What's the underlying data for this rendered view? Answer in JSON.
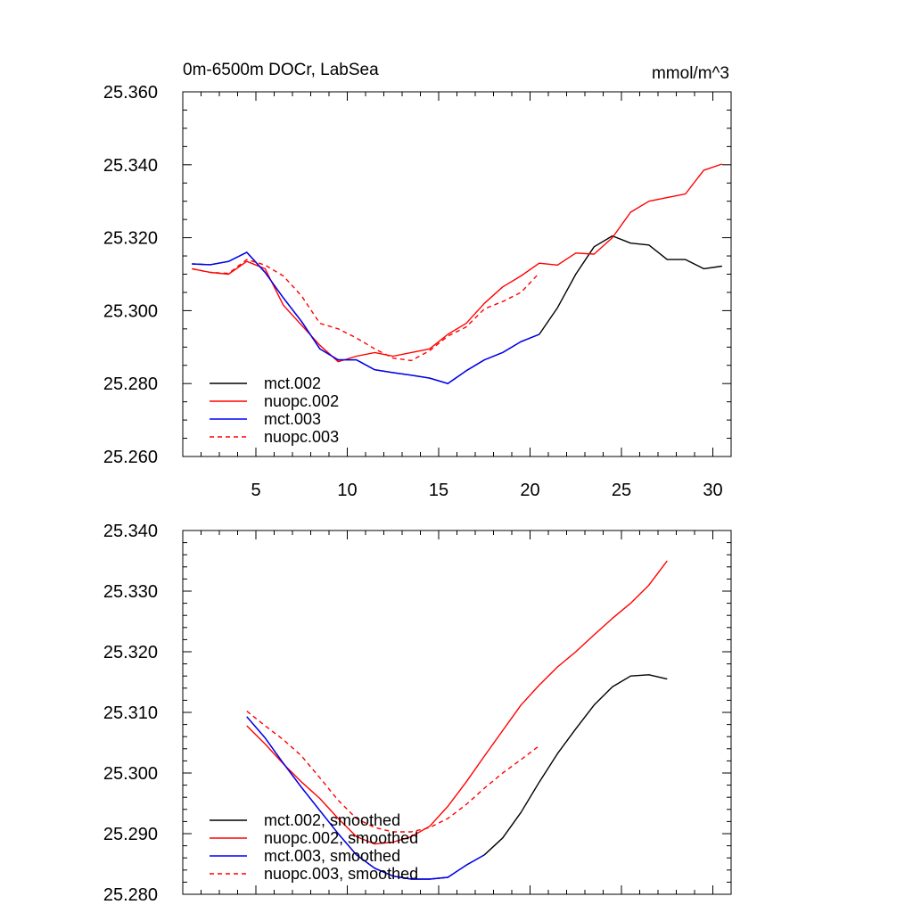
{
  "chart_data": [
    {
      "type": "line",
      "title": "0m-6500m DOCr, LabSea",
      "units": "mmol/m^3",
      "xlabel": "",
      "ylabel": "",
      "xlim": [
        1,
        31
      ],
      "ylim": [
        25.26,
        25.36
      ],
      "x_ticks": [
        5,
        10,
        15,
        20,
        25,
        30
      ],
      "x_tick_labels": [
        "5",
        "10",
        "15",
        "20",
        "25",
        "30"
      ],
      "y_ticks": [
        25.26,
        25.28,
        25.3,
        25.32,
        25.34,
        25.36
      ],
      "y_tick_labels": [
        "25.260",
        "25.280",
        "25.300",
        "25.320",
        "25.340",
        "25.360"
      ],
      "legend_position": "bottom-left",
      "series": [
        {
          "name": "mct.002",
          "color": "#000000",
          "dash": "solid",
          "x": [
            1.5,
            2.5,
            3.5,
            4.5,
            5.5,
            6.5,
            7.5,
            8.5,
            9.5,
            10.5,
            11.5,
            12.5,
            13.5,
            14.5,
            15.5,
            16.5,
            17.5,
            18.5,
            19.5,
            20.5,
            21.5,
            22.5,
            23.5,
            24.5,
            25.5,
            26.5,
            27.5,
            28.5,
            29.5,
            30.5
          ],
          "values": [
            25.3128,
            25.3126,
            25.3135,
            25.316,
            25.3105,
            25.3035,
            25.297,
            25.2895,
            25.2865,
            25.2865,
            25.2838,
            25.283,
            25.2823,
            25.2815,
            25.28,
            25.2835,
            25.2865,
            25.2885,
            25.2915,
            25.2935,
            25.3008,
            25.31,
            25.3175,
            25.3205,
            25.3185,
            25.318,
            25.314,
            25.314,
            25.3115,
            25.3122
          ]
        },
        {
          "name": "nuopc.002",
          "color": "#ff0000",
          "dash": "solid",
          "x": [
            1.5,
            2.5,
            3.5,
            4.5,
            5.5,
            6.5,
            7.5,
            8.5,
            9.5,
            10.5,
            11.5,
            12.5,
            13.5,
            14.5,
            15.5,
            16.5,
            17.5,
            18.5,
            19.5,
            20.5,
            21.5,
            22.5,
            23.5,
            24.5,
            25.5,
            26.5,
            27.5,
            28.5,
            29.5,
            30.5
          ],
          "values": [
            25.3115,
            25.3105,
            25.31,
            25.3135,
            25.3115,
            25.3015,
            25.296,
            25.2905,
            25.286,
            25.2875,
            25.2885,
            25.2875,
            25.2885,
            25.2895,
            25.2935,
            25.2965,
            25.302,
            25.3065,
            25.3095,
            25.313,
            25.3125,
            25.3158,
            25.3155,
            25.32,
            25.327,
            25.33,
            25.331,
            25.332,
            25.3385,
            25.3402
          ]
        },
        {
          "name": "mct.003",
          "color": "#0000ff",
          "dash": "solid",
          "x": [
            1.5,
            2.5,
            3.5,
            4.5,
            5.5,
            6.5,
            7.5,
            8.5,
            9.5,
            10.5,
            11.5,
            12.5,
            13.5,
            14.5,
            15.5,
            16.5,
            17.5,
            18.5,
            19.5,
            20.5
          ],
          "values": [
            25.3128,
            25.3126,
            25.3135,
            25.316,
            25.3105,
            25.3035,
            25.297,
            25.2895,
            25.2865,
            25.2865,
            25.2838,
            25.283,
            25.2823,
            25.2815,
            25.28,
            25.2835,
            25.2865,
            25.2885,
            25.2915,
            25.2935
          ]
        },
        {
          "name": "nuopc.003",
          "color": "#ff0000",
          "dash": "dashed",
          "x": [
            1.5,
            2.5,
            3.5,
            4.5,
            5.5,
            6.5,
            7.5,
            8.5,
            9.5,
            10.5,
            11.5,
            12.5,
            13.5,
            14.5,
            15.5,
            16.5,
            17.5,
            18.5,
            19.5,
            20.5
          ],
          "values": [
            25.3115,
            25.3105,
            25.3102,
            25.314,
            25.3125,
            25.3095,
            25.304,
            25.2965,
            25.295,
            25.2925,
            25.2895,
            25.287,
            25.2863,
            25.289,
            25.293,
            25.2955,
            25.3005,
            25.3025,
            25.305,
            25.3103
          ]
        }
      ]
    },
    {
      "type": "line",
      "title": "",
      "xlabel": "",
      "ylabel": "",
      "xlim": [
        1,
        31
      ],
      "ylim": [
        25.28,
        25.34
      ],
      "x_ticks": [
        5,
        10,
        15,
        20,
        25,
        30
      ],
      "x_tick_labels": [],
      "y_ticks": [
        25.28,
        25.29,
        25.3,
        25.31,
        25.32,
        25.33,
        25.34
      ],
      "y_tick_labels": [
        "25.280",
        "25.290",
        "25.300",
        "25.310",
        "25.320",
        "25.330",
        "25.340"
      ],
      "legend_position": "bottom-left",
      "series": [
        {
          "name": "mct.002, smoothed",
          "color": "#000000",
          "dash": "solid",
          "x": [
            4.5,
            5.5,
            6.5,
            7.5,
            8.5,
            9.5,
            10.5,
            11.5,
            12.5,
            13.5,
            14.5,
            15.5,
            16.5,
            17.5,
            18.5,
            19.5,
            20.5,
            21.5,
            22.5,
            23.5,
            24.5,
            25.5,
            26.5,
            27.5
          ],
          "values": [
            25.3093,
            25.3058,
            25.3016,
            25.2976,
            25.2938,
            25.29,
            25.2865,
            25.2843,
            25.283,
            25.2825,
            25.2825,
            25.2828,
            25.2848,
            25.2865,
            25.2893,
            25.2935,
            25.2985,
            25.3032,
            25.3073,
            25.3112,
            25.3142,
            25.316,
            25.3162,
            25.3155
          ]
        },
        {
          "name": "nuopc.002, smoothed",
          "color": "#ff0000",
          "dash": "solid",
          "x": [
            4.5,
            5.5,
            6.5,
            7.5,
            8.5,
            9.5,
            10.5,
            11.5,
            12.5,
            13.5,
            14.5,
            15.5,
            16.5,
            17.5,
            18.5,
            19.5,
            20.5,
            21.5,
            22.5,
            23.5,
            24.5,
            25.5,
            26.5,
            27.5
          ],
          "values": [
            25.3078,
            25.3048,
            25.3015,
            25.2985,
            25.2958,
            25.2925,
            25.2895,
            25.2883,
            25.2886,
            25.2895,
            25.2912,
            25.2945,
            25.2985,
            25.3028,
            25.307,
            25.3112,
            25.3145,
            25.3175,
            25.32,
            25.3228,
            25.3255,
            25.328,
            25.331,
            25.335
          ]
        },
        {
          "name": "mct.003, smoothed",
          "color": "#0000ff",
          "dash": "solid",
          "x": [
            4.5,
            5.5,
            6.5,
            7.5,
            8.5,
            9.5,
            10.5,
            11.5,
            12.5,
            13.5,
            14.5,
            15.5,
            16.5,
            17.5
          ],
          "values": [
            25.3093,
            25.3058,
            25.3016,
            25.2976,
            25.2938,
            25.29,
            25.2865,
            25.2843,
            25.283,
            25.2825,
            25.2825,
            25.2828,
            25.2848,
            25.2865
          ]
        },
        {
          "name": "nuopc.003, smoothed",
          "color": "#ff0000",
          "dash": "dashed",
          "x": [
            4.5,
            5.5,
            6.5,
            7.5,
            8.5,
            9.5,
            10.5,
            11.5,
            12.5,
            13.5,
            14.5,
            15.5,
            16.5,
            17.5,
            18.5,
            19.5,
            20.5
          ],
          "values": [
            25.3102,
            25.3078,
            25.3055,
            25.3028,
            25.2992,
            25.2955,
            25.2925,
            25.291,
            25.2903,
            25.2903,
            25.291,
            25.2925,
            25.2948,
            25.2975,
            25.3,
            25.3022,
            25.3045
          ]
        }
      ]
    }
  ]
}
